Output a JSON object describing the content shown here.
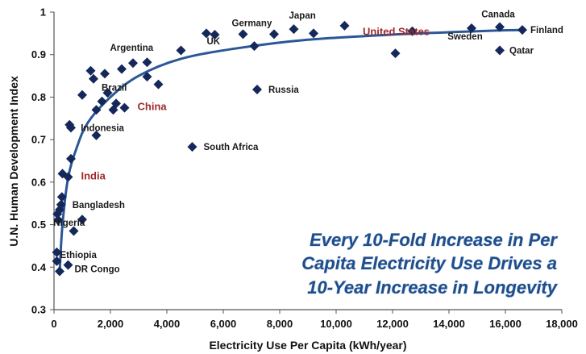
{
  "chart_data": {
    "type": "scatter",
    "xlabel": "Electricity Use Per Capita (kWh/year)",
    "ylabel": "U.N. Human Development Index",
    "xlim": [
      0,
      18000
    ],
    "ylim": [
      0.3,
      1.0
    ],
    "x_ticks": [
      "0",
      "2,000",
      "4,000",
      "6,000",
      "8,000",
      "10,000",
      "12,000",
      "14,000",
      "16,000",
      "18,000"
    ],
    "y_ticks": [
      "0.3",
      "0.4",
      "0.5",
      "0.6",
      "0.7",
      "0.8",
      "0.9",
      "1"
    ],
    "marker_color": "#14285a",
    "trend_color": "#2b5797",
    "highlight_color": "#9e2a2b",
    "grid": false,
    "legend": "none",
    "annotation": [
      "Every 10-Fold Increase in Per",
      "Capita Electricity Use Drives a",
      "10-Year Increase in Longevity"
    ],
    "labels": [
      {
        "text": "Canada",
        "x": 15800,
        "y": 0.965
      },
      {
        "text": "Finland",
        "x": 16600,
        "y": 0.958
      },
      {
        "text": "Sweden",
        "x": 14800,
        "y": 0.962
      },
      {
        "text": "Qatar",
        "x": 15800,
        "y": 0.91
      },
      {
        "text": "United States",
        "x": 12700,
        "y": 0.955,
        "highlight": true
      },
      {
        "text": "Japan",
        "x": 8500,
        "y": 0.96
      },
      {
        "text": "Germany",
        "x": 6700,
        "y": 0.948
      },
      {
        "text": "UK",
        "x": 5700,
        "y": 0.947
      },
      {
        "text": "Argentina",
        "x": 3300,
        "y": 0.882
      },
      {
        "text": "Russia",
        "x": 7200,
        "y": 0.818
      },
      {
        "text": "Brazil",
        "x": 2200,
        "y": 0.79
      },
      {
        "text": "China",
        "x": 2500,
        "y": 0.775,
        "highlight": true
      },
      {
        "text": "Indonesia",
        "x": 550,
        "y": 0.728
      },
      {
        "text": "South Africa",
        "x": 4900,
        "y": 0.683
      },
      {
        "text": "India",
        "x": 500,
        "y": 0.612,
        "highlight": true
      },
      {
        "text": "Bangladesh",
        "x": 250,
        "y": 0.547
      },
      {
        "text": "Nigeria",
        "x": 150,
        "y": 0.511
      },
      {
        "text": "Ethiopia",
        "x": 100,
        "y": 0.414
      },
      {
        "text": "DR Congo",
        "x": 500,
        "y": 0.407
      }
    ],
    "points": [
      {
        "x": 16600,
        "y": 0.958
      },
      {
        "x": 15800,
        "y": 0.965
      },
      {
        "x": 14800,
        "y": 0.962
      },
      {
        "x": 15800,
        "y": 0.91
      },
      {
        "x": 12700,
        "y": 0.955
      },
      {
        "x": 12100,
        "y": 0.903
      },
      {
        "x": 10300,
        "y": 0.968
      },
      {
        "x": 9200,
        "y": 0.95
      },
      {
        "x": 8500,
        "y": 0.96
      },
      {
        "x": 7800,
        "y": 0.948
      },
      {
        "x": 7100,
        "y": 0.92
      },
      {
        "x": 7200,
        "y": 0.818
      },
      {
        "x": 6700,
        "y": 0.948
      },
      {
        "x": 5700,
        "y": 0.947
      },
      {
        "x": 5400,
        "y": 0.95
      },
      {
        "x": 4900,
        "y": 0.683
      },
      {
        "x": 4500,
        "y": 0.91
      },
      {
        "x": 3700,
        "y": 0.83
      },
      {
        "x": 3300,
        "y": 0.882
      },
      {
        "x": 3300,
        "y": 0.848
      },
      {
        "x": 2800,
        "y": 0.88
      },
      {
        "x": 2400,
        "y": 0.866
      },
      {
        "x": 2500,
        "y": 0.775
      },
      {
        "x": 2200,
        "y": 0.785
      },
      {
        "x": 2100,
        "y": 0.77
      },
      {
        "x": 1800,
        "y": 0.855
      },
      {
        "x": 1900,
        "y": 0.81
      },
      {
        "x": 1700,
        "y": 0.79
      },
      {
        "x": 1500,
        "y": 0.77
      },
      {
        "x": 1500,
        "y": 0.71
      },
      {
        "x": 1400,
        "y": 0.843
      },
      {
        "x": 1300,
        "y": 0.862
      },
      {
        "x": 1000,
        "y": 0.805
      },
      {
        "x": 1000,
        "y": 0.512
      },
      {
        "x": 700,
        "y": 0.485
      },
      {
        "x": 600,
        "y": 0.655
      },
      {
        "x": 600,
        "y": 0.728
      },
      {
        "x": 550,
        "y": 0.735
      },
      {
        "x": 500,
        "y": 0.612
      },
      {
        "x": 500,
        "y": 0.405
      },
      {
        "x": 300,
        "y": 0.62
      },
      {
        "x": 280,
        "y": 0.565
      },
      {
        "x": 250,
        "y": 0.547
      },
      {
        "x": 200,
        "y": 0.535
      },
      {
        "x": 150,
        "y": 0.511
      },
      {
        "x": 120,
        "y": 0.525
      },
      {
        "x": 100,
        "y": 0.414
      },
      {
        "x": 100,
        "y": 0.435
      },
      {
        "x": 200,
        "y": 0.39
      }
    ],
    "trend": [
      {
        "x": 200,
        "y": 0.39
      },
      {
        "x": 300,
        "y": 0.5
      },
      {
        "x": 500,
        "y": 0.61
      },
      {
        "x": 800,
        "y": 0.68
      },
      {
        "x": 1200,
        "y": 0.74
      },
      {
        "x": 2000,
        "y": 0.8
      },
      {
        "x": 3000,
        "y": 0.85
      },
      {
        "x": 4500,
        "y": 0.89
      },
      {
        "x": 6500,
        "y": 0.915
      },
      {
        "x": 9000,
        "y": 0.935
      },
      {
        "x": 12000,
        "y": 0.947
      },
      {
        "x": 15000,
        "y": 0.955
      },
      {
        "x": 16600,
        "y": 0.958
      }
    ]
  }
}
